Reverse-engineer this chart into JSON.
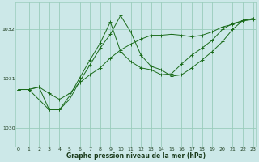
{
  "title": "Graphe pression niveau de la mer (hPa)",
  "background_color": "#cce8e8",
  "grid_color": "#99ccbb",
  "line_color": "#1a6b1a",
  "xlim": [
    -0.3,
    23.3
  ],
  "ylim": [
    1029.62,
    1032.55
  ],
  "yticks": [
    1030,
    1031,
    1032
  ],
  "xticks": [
    0,
    1,
    2,
    3,
    4,
    5,
    6,
    7,
    8,
    9,
    10,
    11,
    12,
    13,
    14,
    15,
    16,
    17,
    18,
    19,
    20,
    21,
    22,
    23
  ],
  "series": [
    {
      "x": [
        0,
        1,
        2,
        3,
        4,
        5,
        6,
        7,
        8,
        9,
        10,
        11,
        12,
        13,
        14,
        15,
        16,
        17,
        18,
        19,
        20,
        21,
        22,
        23
      ],
      "y": [
        1030.78,
        1030.78,
        1030.83,
        1030.7,
        1030.58,
        1030.7,
        1030.92,
        1031.08,
        1031.22,
        1031.42,
        1031.58,
        1031.7,
        1031.8,
        1031.88,
        1031.88,
        1031.9,
        1031.88,
        1031.85,
        1031.88,
        1031.95,
        1032.05,
        1032.1,
        1032.18,
        1032.22
      ]
    },
    {
      "x": [
        0,
        1,
        3,
        4,
        5,
        6,
        7,
        8,
        9,
        10,
        11,
        12,
        13,
        14,
        15,
        16,
        17,
        18,
        19,
        20,
        21,
        22,
        23
      ],
      "y": [
        1030.78,
        1030.78,
        1030.37,
        1030.37,
        1030.58,
        1030.95,
        1031.28,
        1031.62,
        1031.9,
        1032.28,
        1031.95,
        1031.48,
        1031.25,
        1031.18,
        1031.05,
        1031.08,
        1031.22,
        1031.38,
        1031.55,
        1031.75,
        1032.0,
        1032.18,
        1032.22
      ]
    },
    {
      "x": [
        0,
        1,
        2,
        3,
        4,
        5,
        6,
        7,
        8,
        9,
        10,
        11,
        12,
        13,
        14,
        15,
        16,
        17,
        18,
        19,
        20,
        21,
        22,
        23
      ],
      "y": [
        1030.78,
        1030.78,
        1030.83,
        1030.37,
        1030.37,
        1030.65,
        1031.02,
        1031.38,
        1031.72,
        1032.15,
        1031.55,
        1031.35,
        1031.22,
        1031.18,
        1031.08,
        1031.1,
        1031.3,
        1031.48,
        1031.62,
        1031.78,
        1032.0,
        1032.12,
        1032.17,
        1032.2
      ]
    }
  ]
}
